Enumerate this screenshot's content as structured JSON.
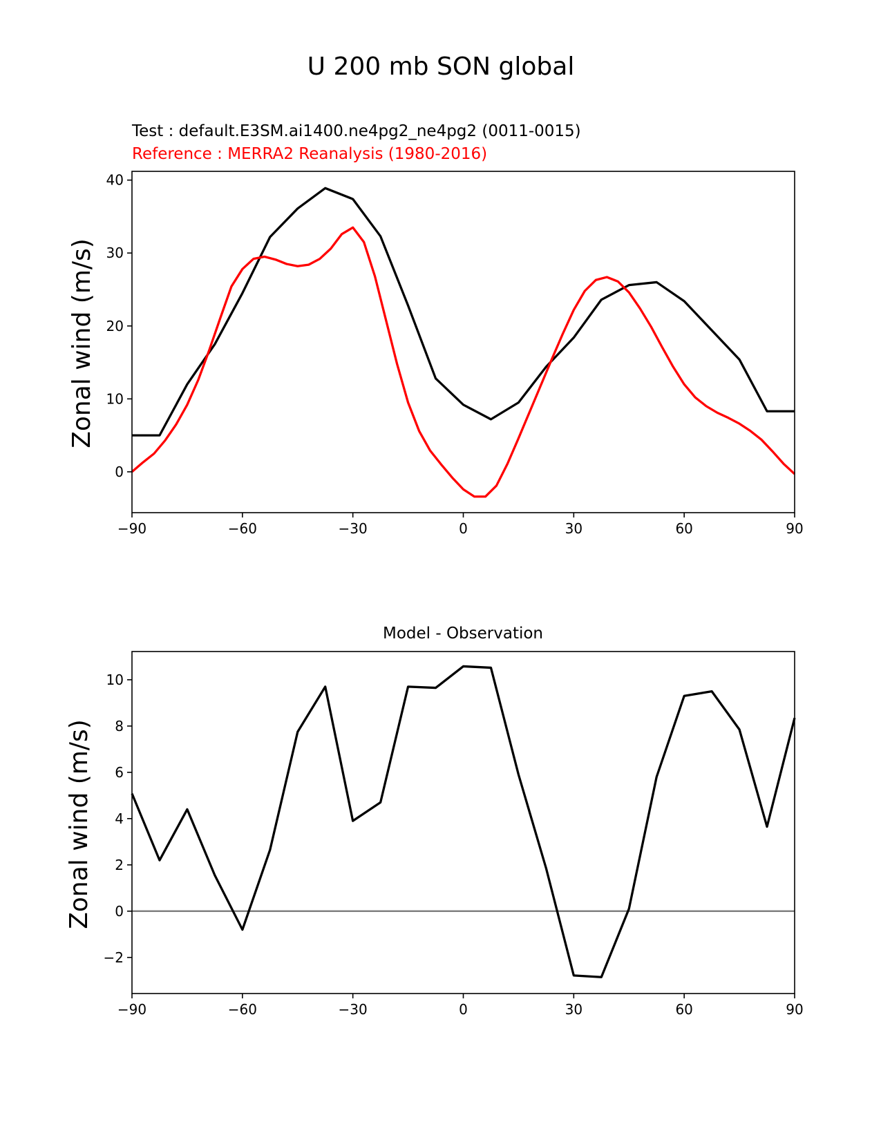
{
  "figure": {
    "title": "U 200 mb SON global"
  },
  "chart_data": [
    {
      "type": "line",
      "title": "",
      "test_label": "Test : default.E3SM.ai1400.ne4pg2_ne4pg2 (0011-0015)",
      "reference_label": "Reference : MERRA2 Reanalysis (1980-2016)",
      "xlabel": "",
      "ylabel": "Zonal wind (m/s)",
      "xlim": [
        -90,
        90
      ],
      "ylim": [
        -5.6,
        41.2
      ],
      "xticks": [
        -90,
        -60,
        -30,
        0,
        30,
        60,
        90
      ],
      "xtick_labels": [
        "−90",
        "−60",
        "−30",
        "0",
        "30",
        "60",
        "90"
      ],
      "yticks": [
        0,
        10,
        20,
        30,
        40
      ],
      "ytick_labels": [
        "0",
        "10",
        "20",
        "30",
        "40"
      ],
      "series": [
        {
          "name": "Test",
          "color": "#000000",
          "x": [
            -90,
            -82.5,
            -75,
            -67.5,
            -60,
            -52.5,
            -45,
            -37.5,
            -30,
            -22.5,
            -15,
            -7.5,
            0,
            7.5,
            15,
            22.5,
            30,
            37.5,
            45,
            52.5,
            60,
            67.5,
            75,
            82.5,
            90
          ],
          "values": [
            5.0,
            5.0,
            12.0,
            17.5,
            24.5,
            32.2,
            36.1,
            38.9,
            37.4,
            32.3,
            22.8,
            12.8,
            9.2,
            7.2,
            9.5,
            14.4,
            18.4,
            23.6,
            25.6,
            26.0,
            23.4,
            19.4,
            15.4,
            8.3,
            8.3
          ]
        },
        {
          "name": "Reference",
          "color": "#ff0000",
          "x": [
            -90,
            -87,
            -84,
            -81,
            -78,
            -75,
            -72,
            -69,
            -66,
            -63,
            -60,
            -57,
            -54,
            -51,
            -48,
            -45,
            -42,
            -39,
            -36,
            -33,
            -30,
            -27,
            -24,
            -21,
            -18,
            -15,
            -12,
            -9,
            -6,
            -3,
            0,
            3,
            6,
            9,
            12,
            15,
            18,
            21,
            24,
            27,
            30,
            33,
            36,
            39,
            42,
            45,
            48,
            51,
            54,
            57,
            60,
            63,
            66,
            69,
            72,
            75,
            78,
            81,
            84,
            87,
            90
          ],
          "values": [
            0.0,
            1.3,
            2.5,
            4.3,
            6.5,
            9.2,
            12.6,
            16.7,
            21.1,
            25.4,
            27.8,
            29.2,
            29.5,
            29.1,
            28.5,
            28.2,
            28.4,
            29.2,
            30.6,
            32.6,
            33.5,
            31.5,
            26.8,
            20.8,
            14.8,
            9.5,
            5.6,
            2.9,
            1.0,
            -0.8,
            -2.4,
            -3.4,
            -3.4,
            -1.9,
            1.1,
            4.6,
            8.2,
            11.8,
            15.4,
            18.9,
            22.2,
            24.8,
            26.3,
            26.7,
            26.1,
            24.6,
            22.4,
            19.9,
            17.1,
            14.4,
            12.0,
            10.2,
            9.0,
            8.1,
            7.4,
            6.6,
            5.6,
            4.4,
            2.8,
            1.1,
            -0.3
          ]
        }
      ]
    },
    {
      "type": "line",
      "title": "Model - Observation",
      "xlabel": "",
      "ylabel": "Zonal wind (m/s)",
      "xlim": [
        -90,
        90
      ],
      "ylim": [
        -3.56,
        11.22
      ],
      "xticks": [
        -90,
        -60,
        -30,
        0,
        30,
        60,
        90
      ],
      "xtick_labels": [
        "−90",
        "−60",
        "−30",
        "0",
        "30",
        "60",
        "90"
      ],
      "yticks": [
        -2,
        0,
        2,
        4,
        6,
        8,
        10
      ],
      "ytick_labels": [
        "−2",
        "0",
        "2",
        "4",
        "6",
        "8",
        "10"
      ],
      "zero_line_color": "#808080",
      "series": [
        {
          "name": "Model - Observation",
          "color": "#000000",
          "x": [
            -90,
            -82.5,
            -75,
            -67.5,
            -60,
            -52.5,
            -45,
            -37.5,
            -30,
            -22.5,
            -15,
            -7.5,
            0,
            7.5,
            15,
            22.5,
            30,
            37.5,
            45,
            52.5,
            60,
            67.5,
            75,
            82.5,
            90
          ],
          "values": [
            5.08,
            2.2,
            4.4,
            1.55,
            -0.8,
            2.65,
            7.75,
            9.7,
            3.9,
            4.7,
            9.7,
            9.65,
            10.58,
            10.52,
            5.9,
            1.85,
            -2.78,
            -2.85,
            0.1,
            5.8,
            9.3,
            9.5,
            7.85,
            3.65,
            8.35
          ]
        }
      ]
    }
  ]
}
